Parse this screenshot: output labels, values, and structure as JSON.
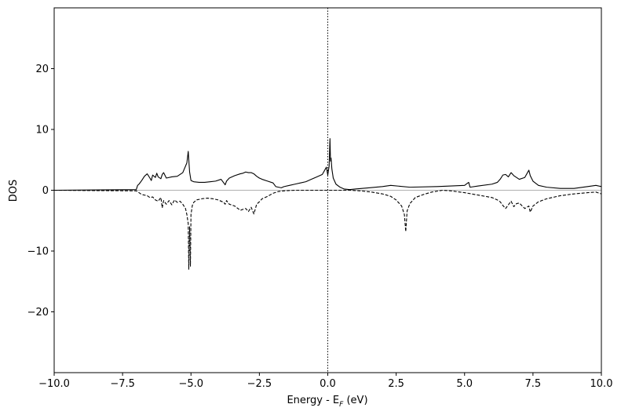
{
  "chart_data": {
    "type": "line",
    "xlabel_main": "Energy - E",
    "xlabel_sub": "F",
    "xlabel_tail": " (eV)",
    "ylabel": "DOS",
    "xlim": [
      -10,
      10
    ],
    "ylim": [
      -30,
      30
    ],
    "x_ticks": [
      -10,
      -7.5,
      -5,
      -2.5,
      0,
      2.5,
      5,
      7.5,
      10
    ],
    "x_tick_labels": [
      "−10.0",
      "−7.5",
      "−5.0",
      "−2.5",
      "0.0",
      "2.5",
      "5.0",
      "7.5",
      "10.0"
    ],
    "y_ticks": [
      -20,
      -10,
      0,
      10,
      20
    ],
    "y_tick_labels": [
      "−20",
      "−10",
      "0",
      "10",
      "20"
    ],
    "fermi_level": 0,
    "colors": {
      "line": "#000000",
      "zero_line": "#b0b0b0"
    },
    "series": [
      {
        "style": "solid",
        "x": [
          -10,
          -7,
          -6.95,
          -6.9,
          -6.8,
          -6.7,
          -6.6,
          -6.5,
          -6.45,
          -6.4,
          -6.3,
          -6.25,
          -6.2,
          -6.1,
          -6.05,
          -6.0,
          -5.9,
          -5.7,
          -5.5,
          -5.3,
          -5.15,
          -5.1,
          -5.05,
          -5.0,
          -4.9,
          -4.7,
          -4.5,
          -4.3,
          -4.1,
          -3.9,
          -3.8,
          -3.75,
          -3.7,
          -3.6,
          -3.4,
          -3.2,
          -3.1,
          -3.0,
          -2.9,
          -2.8,
          -2.7,
          -2.6,
          -2.5,
          -2.4,
          -2.2,
          -2.0,
          -1.9,
          -1.8,
          -1.7,
          -1.6,
          -1.4,
          -1.2,
          -1.0,
          -0.8,
          -0.6,
          -0.4,
          -0.2,
          -0.05,
          0.0,
          0.05,
          0.08,
          0.1,
          0.12,
          0.15,
          0.2,
          0.3,
          0.45,
          0.6,
          0.8,
          1.0,
          1.5,
          2.0,
          2.3,
          3.0,
          4.0,
          5.0,
          5.15,
          5.2,
          5.5,
          6.0,
          6.2,
          6.3,
          6.4,
          6.5,
          6.6,
          6.7,
          6.8,
          7.0,
          7.2,
          7.35,
          7.4,
          7.5,
          7.7,
          8.0,
          8.5,
          9.0,
          9.5,
          9.8,
          10.0
        ],
        "y": [
          0,
          0.1,
          0.8,
          1.0,
          1.6,
          2.3,
          2.7,
          2.0,
          1.6,
          2.5,
          2.1,
          2.8,
          2.2,
          1.9,
          2.6,
          2.9,
          2.0,
          2.2,
          2.3,
          2.9,
          4.5,
          6.4,
          3.0,
          1.6,
          1.4,
          1.3,
          1.3,
          1.4,
          1.5,
          1.8,
          1.2,
          0.9,
          1.5,
          2.0,
          2.4,
          2.7,
          2.8,
          3.0,
          2.9,
          2.9,
          2.7,
          2.3,
          2.0,
          1.8,
          1.5,
          1.2,
          0.6,
          0.5,
          0.4,
          0.6,
          0.8,
          1.0,
          1.2,
          1.4,
          1.8,
          2.2,
          2.6,
          3.8,
          2.5,
          4.0,
          8.5,
          4.8,
          5.3,
          3.5,
          2.0,
          1.0,
          0.5,
          0.2,
          0.1,
          0.2,
          0.4,
          0.6,
          0.8,
          0.5,
          0.6,
          0.8,
          1.3,
          0.5,
          0.7,
          1.0,
          1.3,
          1.8,
          2.5,
          2.6,
          2.2,
          2.9,
          2.4,
          1.8,
          2.1,
          3.3,
          2.4,
          1.5,
          0.8,
          0.5,
          0.3,
          0.3,
          0.6,
          0.8,
          0.6
        ]
      },
      {
        "style": "dashed",
        "x": [
          -10,
          -7,
          -6.9,
          -6.8,
          -6.6,
          -6.5,
          -6.4,
          -6.3,
          -6.2,
          -6.1,
          -6.05,
          -6.0,
          -5.9,
          -5.8,
          -5.7,
          -5.6,
          -5.5,
          -5.4,
          -5.3,
          -5.2,
          -5.15,
          -5.1,
          -5.08,
          -5.05,
          -5.02,
          -5.0,
          -4.95,
          -4.9,
          -4.8,
          -4.6,
          -4.4,
          -4.2,
          -4.0,
          -3.8,
          -3.75,
          -3.7,
          -3.6,
          -3.4,
          -3.2,
          -3.0,
          -2.9,
          -2.8,
          -2.7,
          -2.6,
          -2.5,
          -2.4,
          -2.2,
          -2.0,
          -1.8,
          -1.6,
          -1.2,
          -0.8,
          -0.4,
          0.0,
          0.4,
          0.8,
          1.2,
          1.6,
          2.0,
          2.3,
          2.5,
          2.7,
          2.8,
          2.85,
          2.9,
          3.0,
          3.2,
          3.5,
          3.8,
          4.2,
          4.5,
          5.0,
          5.5,
          6.0,
          6.2,
          6.3,
          6.4,
          6.5,
          6.6,
          6.7,
          6.8,
          6.9,
          7.0,
          7.2,
          7.35,
          7.4,
          7.5,
          7.7,
          8.0,
          8.5,
          9.0,
          9.5,
          9.8,
          10.0
        ],
        "y": [
          0,
          -0.1,
          -0.4,
          -0.7,
          -0.9,
          -1.2,
          -1.1,
          -1.6,
          -1.8,
          -1.2,
          -2.9,
          -1.7,
          -2.3,
          -1.7,
          -2.4,
          -1.6,
          -2.0,
          -1.8,
          -2.3,
          -3.0,
          -4.0,
          -5.5,
          -13.0,
          -6.0,
          -12.5,
          -4.0,
          -2.5,
          -2.0,
          -1.6,
          -1.4,
          -1.3,
          -1.4,
          -1.6,
          -2.0,
          -2.3,
          -1.7,
          -2.3,
          -2.6,
          -3.3,
          -3.0,
          -3.5,
          -2.8,
          -3.9,
          -2.3,
          -1.9,
          -1.4,
          -1.0,
          -0.5,
          -0.2,
          -0.1,
          0,
          0,
          0,
          0,
          0,
          0,
          -0.1,
          -0.3,
          -0.6,
          -1.0,
          -1.6,
          -2.6,
          -4.0,
          -6.8,
          -3.4,
          -2.2,
          -1.2,
          -0.7,
          -0.3,
          0,
          -0.1,
          -0.4,
          -0.8,
          -1.2,
          -1.6,
          -1.9,
          -2.5,
          -3.0,
          -2.4,
          -1.8,
          -2.7,
          -2.2,
          -2.1,
          -3.0,
          -2.6,
          -3.6,
          -2.6,
          -1.9,
          -1.4,
          -0.9,
          -0.6,
          -0.4,
          -0.3,
          -0.6
        ]
      }
    ]
  }
}
